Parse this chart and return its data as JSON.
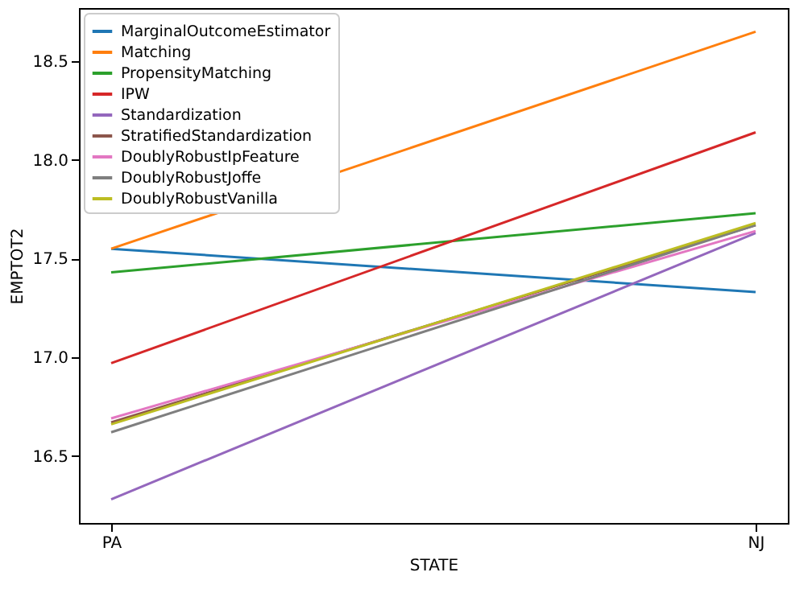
{
  "chart_data": {
    "type": "line",
    "xlabel": "STATE",
    "ylabel": "EMPTOT2",
    "categories": [
      "PA",
      "NJ"
    ],
    "series": [
      {
        "name": "MarginalOutcomeEstimator",
        "color": "#1f77b4",
        "values": [
          17.55,
          17.33
        ]
      },
      {
        "name": "Matching",
        "color": "#ff7f0e",
        "values": [
          17.55,
          18.65
        ]
      },
      {
        "name": "PropensityMatching",
        "color": "#2ca02c",
        "values": [
          17.43,
          17.73
        ]
      },
      {
        "name": "IPW",
        "color": "#d62728",
        "values": [
          16.97,
          18.14
        ]
      },
      {
        "name": "Standardization",
        "color": "#9467bd",
        "values": [
          16.28,
          17.63
        ]
      },
      {
        "name": "StratifiedStandardization",
        "color": "#8c564b",
        "values": [
          16.67,
          17.67
        ]
      },
      {
        "name": "DoublyRobustIpFeature",
        "color": "#e377c2",
        "values": [
          16.69,
          17.64
        ]
      },
      {
        "name": "DoublyRobustJoffe",
        "color": "#7f7f7f",
        "values": [
          16.62,
          17.67
        ]
      },
      {
        "name": "DoublyRobustVanilla",
        "color": "#bcbd22",
        "values": [
          16.66,
          17.68
        ]
      }
    ],
    "ylim": [
      16.16,
      18.77
    ],
    "yticks": [
      16.5,
      {
        "value": 17,
        "label": "17.0"
      },
      17.5,
      {
        "value": 18,
        "label": "18.0"
      },
      18.5
    ],
    "grid": false,
    "legend": "top left",
    "marker": "none",
    "line_style": "solid"
  }
}
